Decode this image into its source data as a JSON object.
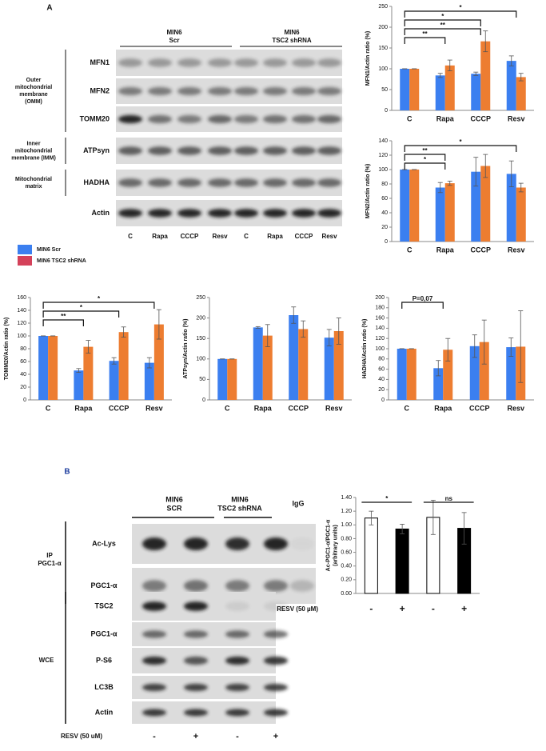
{
  "panel_a": {
    "label": "A",
    "headers": [
      [
        "MIN6",
        "Scr"
      ],
      [
        "MIN6",
        "TSC2 shRNA"
      ]
    ],
    "rows": [
      "MFN1",
      "MFN2",
      "TOMM20",
      "ATPsyn",
      "HADHA",
      "Actin"
    ],
    "compartments": [
      [
        "Outer",
        "mitochondrial",
        "membrane",
        "(OMM)"
      ],
      [
        "Inner",
        "mitochondrial",
        "membrane (IMM)"
      ],
      [
        "Mitochondrial",
        "matrix"
      ]
    ],
    "lanes": [
      "C",
      "Rapa",
      "CCCP",
      "Resv",
      "C",
      "Rapa",
      "CCCP",
      "Resv"
    ]
  },
  "legend": [
    {
      "name": "MIN6 Scr",
      "color": "#3b7ff0"
    },
    {
      "name": "MIN6 TSC2 shRNA",
      "color": "#d4415a"
    }
  ],
  "panel_b": {
    "label": "B",
    "headers": [
      [
        "MIN6",
        "SCR"
      ],
      [
        "MIN6",
        "TSC2 shRNA"
      ],
      [
        "IgG"
      ]
    ],
    "ip_label": [
      "IP",
      "PGC1-α"
    ],
    "wce_label": "WCE",
    "ip_rows": [
      "Ac-Lys",
      "PGC1-α"
    ],
    "wce_rows": [
      "TSC2",
      "PGC1-α",
      "P-S6",
      "LC3B",
      "Actin"
    ],
    "treatment_label": "RESV (50 uM)",
    "lanes": [
      "-",
      "+",
      "-",
      "+"
    ]
  },
  "chart_data": [
    {
      "type": "bar",
      "ylabel": "MFN1/Actin ratio (%)",
      "categories": [
        "C",
        "Rapa",
        "CCCP",
        "Resv"
      ],
      "series": [
        {
          "name": "MIN6 Scr",
          "color": "#3b7ff0",
          "values": [
            100,
            84,
            88,
            119
          ],
          "errors": [
            0,
            5,
            4,
            12
          ]
        },
        {
          "name": "MIN6 TSC2 shRNA",
          "color": "#ed7d31",
          "values": [
            100,
            108,
            166,
            80
          ],
          "errors": [
            0,
            13,
            25,
            9
          ]
        }
      ],
      "ylim": [
        0,
        250
      ],
      "yticks": [
        0,
        50,
        100,
        150,
        200,
        250
      ],
      "annotations": [
        {
          "text": "**",
          "from": 0,
          "to": 1
        },
        {
          "text": "**",
          "from": 0,
          "to": 2
        },
        {
          "text": "*",
          "from": 0,
          "to": 2
        },
        {
          "text": "*",
          "from": 0,
          "to": 3
        }
      ]
    },
    {
      "type": "bar",
      "ylabel": "MFN2/Actin ratio (%)",
      "categories": [
        "C",
        "Rapa",
        "CCCP",
        "Resv"
      ],
      "series": [
        {
          "name": "MIN6 Scr",
          "color": "#3b7ff0",
          "values": [
            100,
            75,
            97,
            94
          ],
          "errors": [
            0,
            7,
            20,
            18
          ]
        },
        {
          "name": "MIN6 TSC2 shRNA",
          "color": "#ed7d31",
          "values": [
            100,
            81,
            105,
            75
          ],
          "errors": [
            0,
            3,
            16,
            6
          ]
        }
      ],
      "ylim": [
        0,
        140
      ],
      "yticks": [
        0,
        20,
        40,
        60,
        80,
        100,
        120,
        140
      ],
      "annotations": [
        {
          "text": "*",
          "from": 0,
          "to": 1
        },
        {
          "text": "**",
          "from": 0,
          "to": 1
        },
        {
          "text": "*",
          "from": 0,
          "to": 3
        }
      ]
    },
    {
      "type": "bar",
      "ylabel": "TOMM20/Actin ratio (%)",
      "categories": [
        "C",
        "Rapa",
        "CCCP",
        "Resv"
      ],
      "series": [
        {
          "name": "MIN6 Scr",
          "color": "#3b7ff0",
          "values": [
            100,
            46,
            61,
            58
          ],
          "errors": [
            0,
            3,
            5,
            8
          ]
        },
        {
          "name": "MIN6 TSC2 shRNA",
          "color": "#ed7d31",
          "values": [
            100,
            83,
            106,
            118
          ],
          "errors": [
            0,
            10,
            8,
            23
          ]
        }
      ],
      "ylim": [
        0,
        160
      ],
      "yticks": [
        0,
        20,
        40,
        60,
        80,
        100,
        120,
        140,
        160
      ],
      "annotations": [
        {
          "text": "**",
          "from": 0,
          "to": 1
        },
        {
          "text": "*",
          "from": 0,
          "to": 2
        },
        {
          "text": "*",
          "from": 0,
          "to": 3
        }
      ]
    },
    {
      "type": "bar",
      "ylabel": "ATPsyn/Actin ratio (%)",
      "categories": [
        "C",
        "Rapa",
        "CCCP",
        "Resv"
      ],
      "series": [
        {
          "name": "MIN6 Scr",
          "color": "#3b7ff0",
          "values": [
            100,
            177,
            207,
            152
          ],
          "errors": [
            0,
            2,
            20,
            20
          ]
        },
        {
          "name": "MIN6 TSC2 shRNA",
          "color": "#ed7d31",
          "values": [
            100,
            157,
            173,
            168
          ],
          "errors": [
            0,
            27,
            20,
            32
          ]
        }
      ],
      "ylim": [
        0,
        250
      ],
      "yticks": [
        0,
        50,
        100,
        150,
        200,
        250
      ],
      "annotations": []
    },
    {
      "type": "bar",
      "ylabel": "HADHA/Actin ratio (%)",
      "categories": [
        "C",
        "Rapa",
        "CCCP",
        "Resv"
      ],
      "series": [
        {
          "name": "MIN6 Scr",
          "color": "#3b7ff0",
          "values": [
            100,
            62,
            105,
            103
          ],
          "errors": [
            0,
            15,
            22,
            18
          ]
        },
        {
          "name": "MIN6 TSC2 shRNA",
          "color": "#ed7d31",
          "values": [
            100,
            98,
            113,
            104
          ],
          "errors": [
            0,
            22,
            43,
            70
          ]
        }
      ],
      "ylim": [
        0,
        200
      ],
      "yticks": [
        0,
        20,
        40,
        60,
        80,
        100,
        120,
        140,
        160,
        180,
        200
      ],
      "annotations": [
        {
          "text": "P=0,07",
          "from": 0,
          "to": 1
        }
      ]
    },
    {
      "type": "bar",
      "ylabel": [
        "Ac-PGC1-α/PGC1-α",
        "(arbitrary units)"
      ],
      "xlabel": "RESV (50 µM)",
      "categories": [
        "-",
        "+",
        "-",
        "+"
      ],
      "series": [
        {
          "colors": [
            "#ffffff",
            "#000000",
            "#ffffff",
            "#000000"
          ],
          "values": [
            1.1,
            0.94,
            1.11,
            0.95
          ],
          "errors": [
            0.1,
            0.07,
            0.25,
            0.23
          ]
        }
      ],
      "ylim": [
        0,
        1.4
      ],
      "yticks": [
        {
          "value": 0,
          "label": "0.00"
        },
        {
          "value": 0.2,
          "label": "0.20"
        },
        {
          "value": 0.4,
          "label": "0.40"
        },
        {
          "value": 0.6,
          "label": "0.60"
        },
        {
          "value": 0.8,
          "label": "0.80"
        },
        {
          "value": 1,
          "label": "1.00"
        },
        {
          "value": 1.2,
          "label": "1.20"
        },
        {
          "value": 1.4,
          "label": "1.40"
        }
      ],
      "annotations": [
        {
          "text": "*",
          "from": 0,
          "to": 1
        },
        {
          "text": "ns",
          "from": 2,
          "to": 3
        }
      ]
    }
  ]
}
